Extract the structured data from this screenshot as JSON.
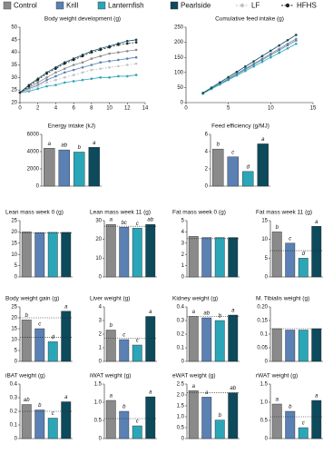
{
  "legend": {
    "items": [
      {
        "name": "Control",
        "color": "#8a8a8a"
      },
      {
        "name": "Krill",
        "color": "#5a80b4"
      },
      {
        "name": "Lanternfish",
        "color": "#2ba6b8"
      },
      {
        "name": "Pearlside",
        "color": "#0c4a5c"
      },
      {
        "name": "LF",
        "color": "#c4c4c4"
      },
      {
        "name": "HFHS",
        "color": "#222222"
      }
    ]
  },
  "chart_data": [
    {
      "type": "line",
      "title": "Body weight development (g)",
      "x": [
        0,
        1,
        2,
        3,
        4,
        5,
        6,
        7,
        8,
        9,
        10,
        11,
        12,
        13
      ],
      "xlim": [
        0,
        14
      ],
      "xticks": [
        0,
        2,
        4,
        6,
        8,
        10,
        12,
        14
      ],
      "ylim": [
        20,
        50
      ],
      "yticks": [
        20,
        25,
        30,
        35,
        40,
        45,
        50
      ],
      "series": [
        {
          "name": "Control",
          "color": "#8a8a8a",
          "values": [
            24,
            26,
            28,
            30,
            32,
            33.5,
            35,
            36,
            37.5,
            38.5,
            39.5,
            40,
            40.5,
            41
          ]
        },
        {
          "name": "Krill",
          "color": "#5a80b4",
          "values": [
            24,
            25.5,
            27,
            29,
            30.5,
            32,
            33,
            34,
            35,
            36,
            36.5,
            37,
            37.5,
            38
          ]
        },
        {
          "name": "Lanternfish",
          "color": "#2ba6b8",
          "values": [
            24,
            24.5,
            25.5,
            26.5,
            27,
            28,
            28.5,
            29,
            29.5,
            30,
            30,
            30.5,
            30.5,
            31
          ]
        },
        {
          "name": "Pearlside",
          "color": "#0c4a5c",
          "values": [
            24,
            27,
            29.5,
            32,
            34,
            36,
            37.5,
            39,
            40.5,
            41.5,
            42.5,
            43.5,
            44.5,
            45
          ]
        },
        {
          "name": "LF",
          "color": "#c4c4c4",
          "values": [
            24,
            25,
            26.5,
            28,
            29,
            30,
            31,
            32,
            33,
            33.5,
            34,
            34.5,
            35,
            35.5
          ]
        },
        {
          "name": "HFHS",
          "color": "#222222",
          "values": [
            24,
            26.5,
            29,
            31.5,
            33.5,
            35.5,
            37,
            38.5,
            40,
            41,
            42,
            43,
            43.5,
            44
          ]
        }
      ]
    },
    {
      "type": "line",
      "title": "Cumulative feed intake (g)",
      "x": [
        2,
        3,
        4,
        5,
        6,
        7,
        8,
        9,
        10,
        11,
        12,
        13
      ],
      "xlim": [
        0,
        15
      ],
      "xticks": [
        0,
        5,
        10,
        15
      ],
      "ylim": [
        0,
        250
      ],
      "yticks": [
        0,
        50,
        100,
        150,
        200,
        250
      ],
      "series": [
        {
          "name": "Control",
          "color": "#8a8a8a",
          "values": [
            30,
            46.5,
            63,
            79.5,
            96,
            112.5,
            129,
            145.5,
            162,
            178.5,
            195,
            211.5
          ]
        },
        {
          "name": "Krill",
          "color": "#5a80b4",
          "values": [
            30,
            46,
            62,
            78,
            94,
            110,
            126,
            142,
            158,
            174,
            190,
            206
          ]
        },
        {
          "name": "Lanternfish",
          "color": "#2ba6b8",
          "values": [
            30,
            45,
            60,
            75,
            90,
            105,
            120,
            135,
            150,
            165,
            180,
            195
          ]
        },
        {
          "name": "Pearlside",
          "color": "#0c4a5c",
          "values": [
            32,
            49.5,
            67,
            84.5,
            102,
            119.5,
            137,
            154.5,
            172,
            189.5,
            207,
            224.5
          ]
        }
      ]
    },
    {
      "type": "bar",
      "title": "Energy intake (kJ)",
      "values": [
        4400,
        4200,
        3950,
        4500
      ],
      "letters": [
        "a",
        "ab",
        "b",
        "a"
      ],
      "ylim": [
        0,
        6000
      ],
      "yticks": [
        0,
        2000,
        4000,
        6000
      ]
    },
    {
      "type": "bar",
      "title": "Feed efficiency (g/MJ)",
      "values": [
        4.3,
        3.4,
        1.7,
        4.9
      ],
      "letters": [
        "b",
        "c",
        "d",
        "a"
      ],
      "ylim": [
        0,
        6
      ],
      "yticks": [
        0,
        2,
        4,
        6
      ]
    },
    {
      "type": "bar",
      "title": "Lean mass week 0 (g)",
      "values": [
        20,
        19.7,
        19.8,
        19.8
      ],
      "reference": [
        19.5
      ],
      "ylim": [
        0,
        25
      ],
      "yticks": [
        0,
        5,
        10,
        15,
        20,
        25
      ]
    },
    {
      "type": "bar",
      "title": "Lean mass week 11 (g)",
      "values": [
        28,
        26.5,
        26,
        28
      ],
      "letters": [
        "a",
        "bc",
        "c",
        "ab"
      ],
      "reference": [
        27
      ],
      "ylim": [
        0,
        30
      ],
      "yticks": [
        0,
        10,
        20,
        30
      ]
    },
    {
      "type": "bar",
      "title": "Fat mass week 0 (g)",
      "values": [
        3.6,
        3.5,
        3.5,
        3.5
      ],
      "reference": [
        3.4
      ],
      "ylim": [
        0,
        5
      ],
      "yticks": [
        0,
        1,
        2,
        3,
        4,
        5
      ]
    },
    {
      "type": "bar",
      "title": "Fat mass week 11 (g)",
      "values": [
        12,
        9,
        5,
        13.5
      ],
      "letters": [
        "b",
        "c",
        "d",
        "a"
      ],
      "reference": [
        7
      ],
      "ylim": [
        0,
        15
      ],
      "yticks": [
        0,
        5,
        10,
        15
      ]
    },
    {
      "type": "bar",
      "title": "Body weight gain (g)",
      "values": [
        19,
        15,
        9,
        23
      ],
      "letters": [
        "b",
        "c",
        "d",
        "a"
      ],
      "reference": [
        20,
        11
      ],
      "ylim": [
        0,
        25
      ],
      "yticks": [
        0,
        5,
        10,
        15,
        20,
        25
      ]
    },
    {
      "type": "bar",
      "title": "Liver weight (g)",
      "values": [
        2.3,
        1.6,
        1.2,
        3.3
      ],
      "letters": [
        "b",
        "c",
        "c",
        "a"
      ],
      "reference": [
        1.7
      ],
      "ylim": [
        0,
        4
      ],
      "yticks": [
        0,
        1,
        2,
        3,
        4
      ]
    },
    {
      "type": "bar",
      "title": "Kidney weight (g)",
      "values": [
        0.33,
        0.32,
        0.3,
        0.34
      ],
      "letters": [
        "a",
        "ab",
        "b",
        "a"
      ],
      "reference": [
        0.33
      ],
      "ylim": [
        0,
        0.4
      ],
      "yticks": [
        0,
        0.1,
        0.2,
        0.3,
        0.4
      ]
    },
    {
      "type": "bar",
      "title": "M. Tibialis weight (g)",
      "values": [
        0.12,
        0.115,
        0.115,
        0.12
      ],
      "reference": [
        0.12
      ],
      "ylim": [
        0,
        0.2
      ],
      "yticks": [
        0,
        0.05,
        0.1,
        0.15,
        {
          "value": 0.2,
          "label": "0.20"
        }
      ]
    },
    {
      "type": "bar",
      "title": "iBAT weight (g)",
      "values": [
        0.25,
        0.21,
        0.15,
        0.27
      ],
      "letters": [
        "ab",
        "b",
        "c",
        "a"
      ],
      "reference": [
        0.2
      ],
      "ylim": [
        0,
        0.4
      ],
      "yticks": [
        0,
        0.1,
        0.2,
        0.3,
        0.4
      ]
    },
    {
      "type": "bar",
      "title": "iWAT weight (g)",
      "values": [
        1.05,
        0.75,
        0.35,
        1.15
      ],
      "letters": [
        "a",
        "b",
        "c",
        "a"
      ],
      "reference": [
        0.55
      ],
      "ylim": [
        0,
        1.5
      ],
      "yticks": [
        0,
        0.5,
        {
          "value": 1,
          "label": "1.0"
        },
        1.5
      ]
    },
    {
      "type": "bar",
      "title": "eWAT weight (g)",
      "values": [
        2.2,
        1.9,
        0.85,
        2.1
      ],
      "letters": [
        "a",
        "a",
        "b",
        "ab"
      ],
      "reference": [
        2.1
      ],
      "ylim": [
        0,
        2.5
      ],
      "yticks": [
        0,
        0.5,
        {
          "value": 1,
          "label": "1.0"
        },
        1.5,
        {
          "value": 2,
          "label": "2.0"
        },
        2.5
      ]
    },
    {
      "type": "bar",
      "title": "rWAT weight (g)",
      "values": [
        0.95,
        0.75,
        0.3,
        1.05
      ],
      "letters": [
        "a",
        "b",
        "c",
        "a"
      ],
      "reference": [
        0.6
      ],
      "ylim": [
        0,
        1.5
      ],
      "yticks": [
        0,
        0.5,
        {
          "value": 1,
          "label": "1.0"
        },
        1.5
      ]
    }
  ]
}
